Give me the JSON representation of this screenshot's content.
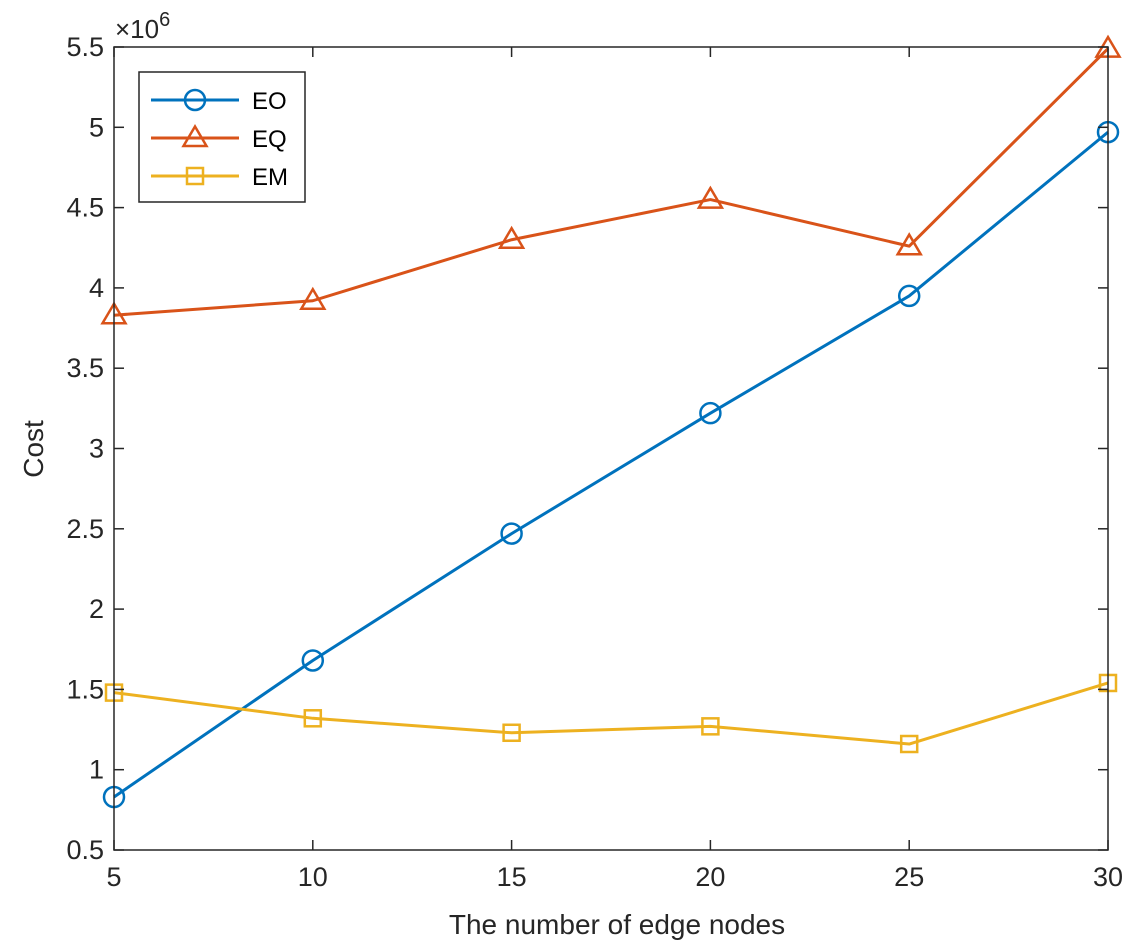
{
  "chart_data": {
    "type": "line",
    "xlabel": "The number of edge nodes",
    "ylabel": "Cost",
    "x": [
      5,
      10,
      15,
      20,
      25,
      30
    ],
    "xlim": [
      5,
      30
    ],
    "ylim": [
      0.5,
      5.5
    ],
    "y_exponent": "×10",
    "y_exponent_power": "6",
    "xticks": [
      "5",
      "10",
      "15",
      "20",
      "25",
      "30"
    ],
    "yticks": [
      "0.5",
      "1",
      "1.5",
      "2",
      "2.5",
      "3",
      "3.5",
      "4",
      "4.5",
      "5",
      "5.5"
    ],
    "grid": false,
    "legend_position": "top-left",
    "series": [
      {
        "name": "EO",
        "marker": "circle",
        "color": "#0072BD",
        "values": [
          0.83,
          1.68,
          2.47,
          3.22,
          3.95,
          4.97
        ]
      },
      {
        "name": "EQ",
        "marker": "triangle",
        "color": "#D95319",
        "values": [
          3.83,
          3.92,
          4.3,
          4.55,
          4.26,
          5.49
        ]
      },
      {
        "name": "EM",
        "marker": "square",
        "color": "#EDB120",
        "values": [
          1.48,
          1.32,
          1.23,
          1.27,
          1.16,
          1.54
        ]
      }
    ]
  }
}
